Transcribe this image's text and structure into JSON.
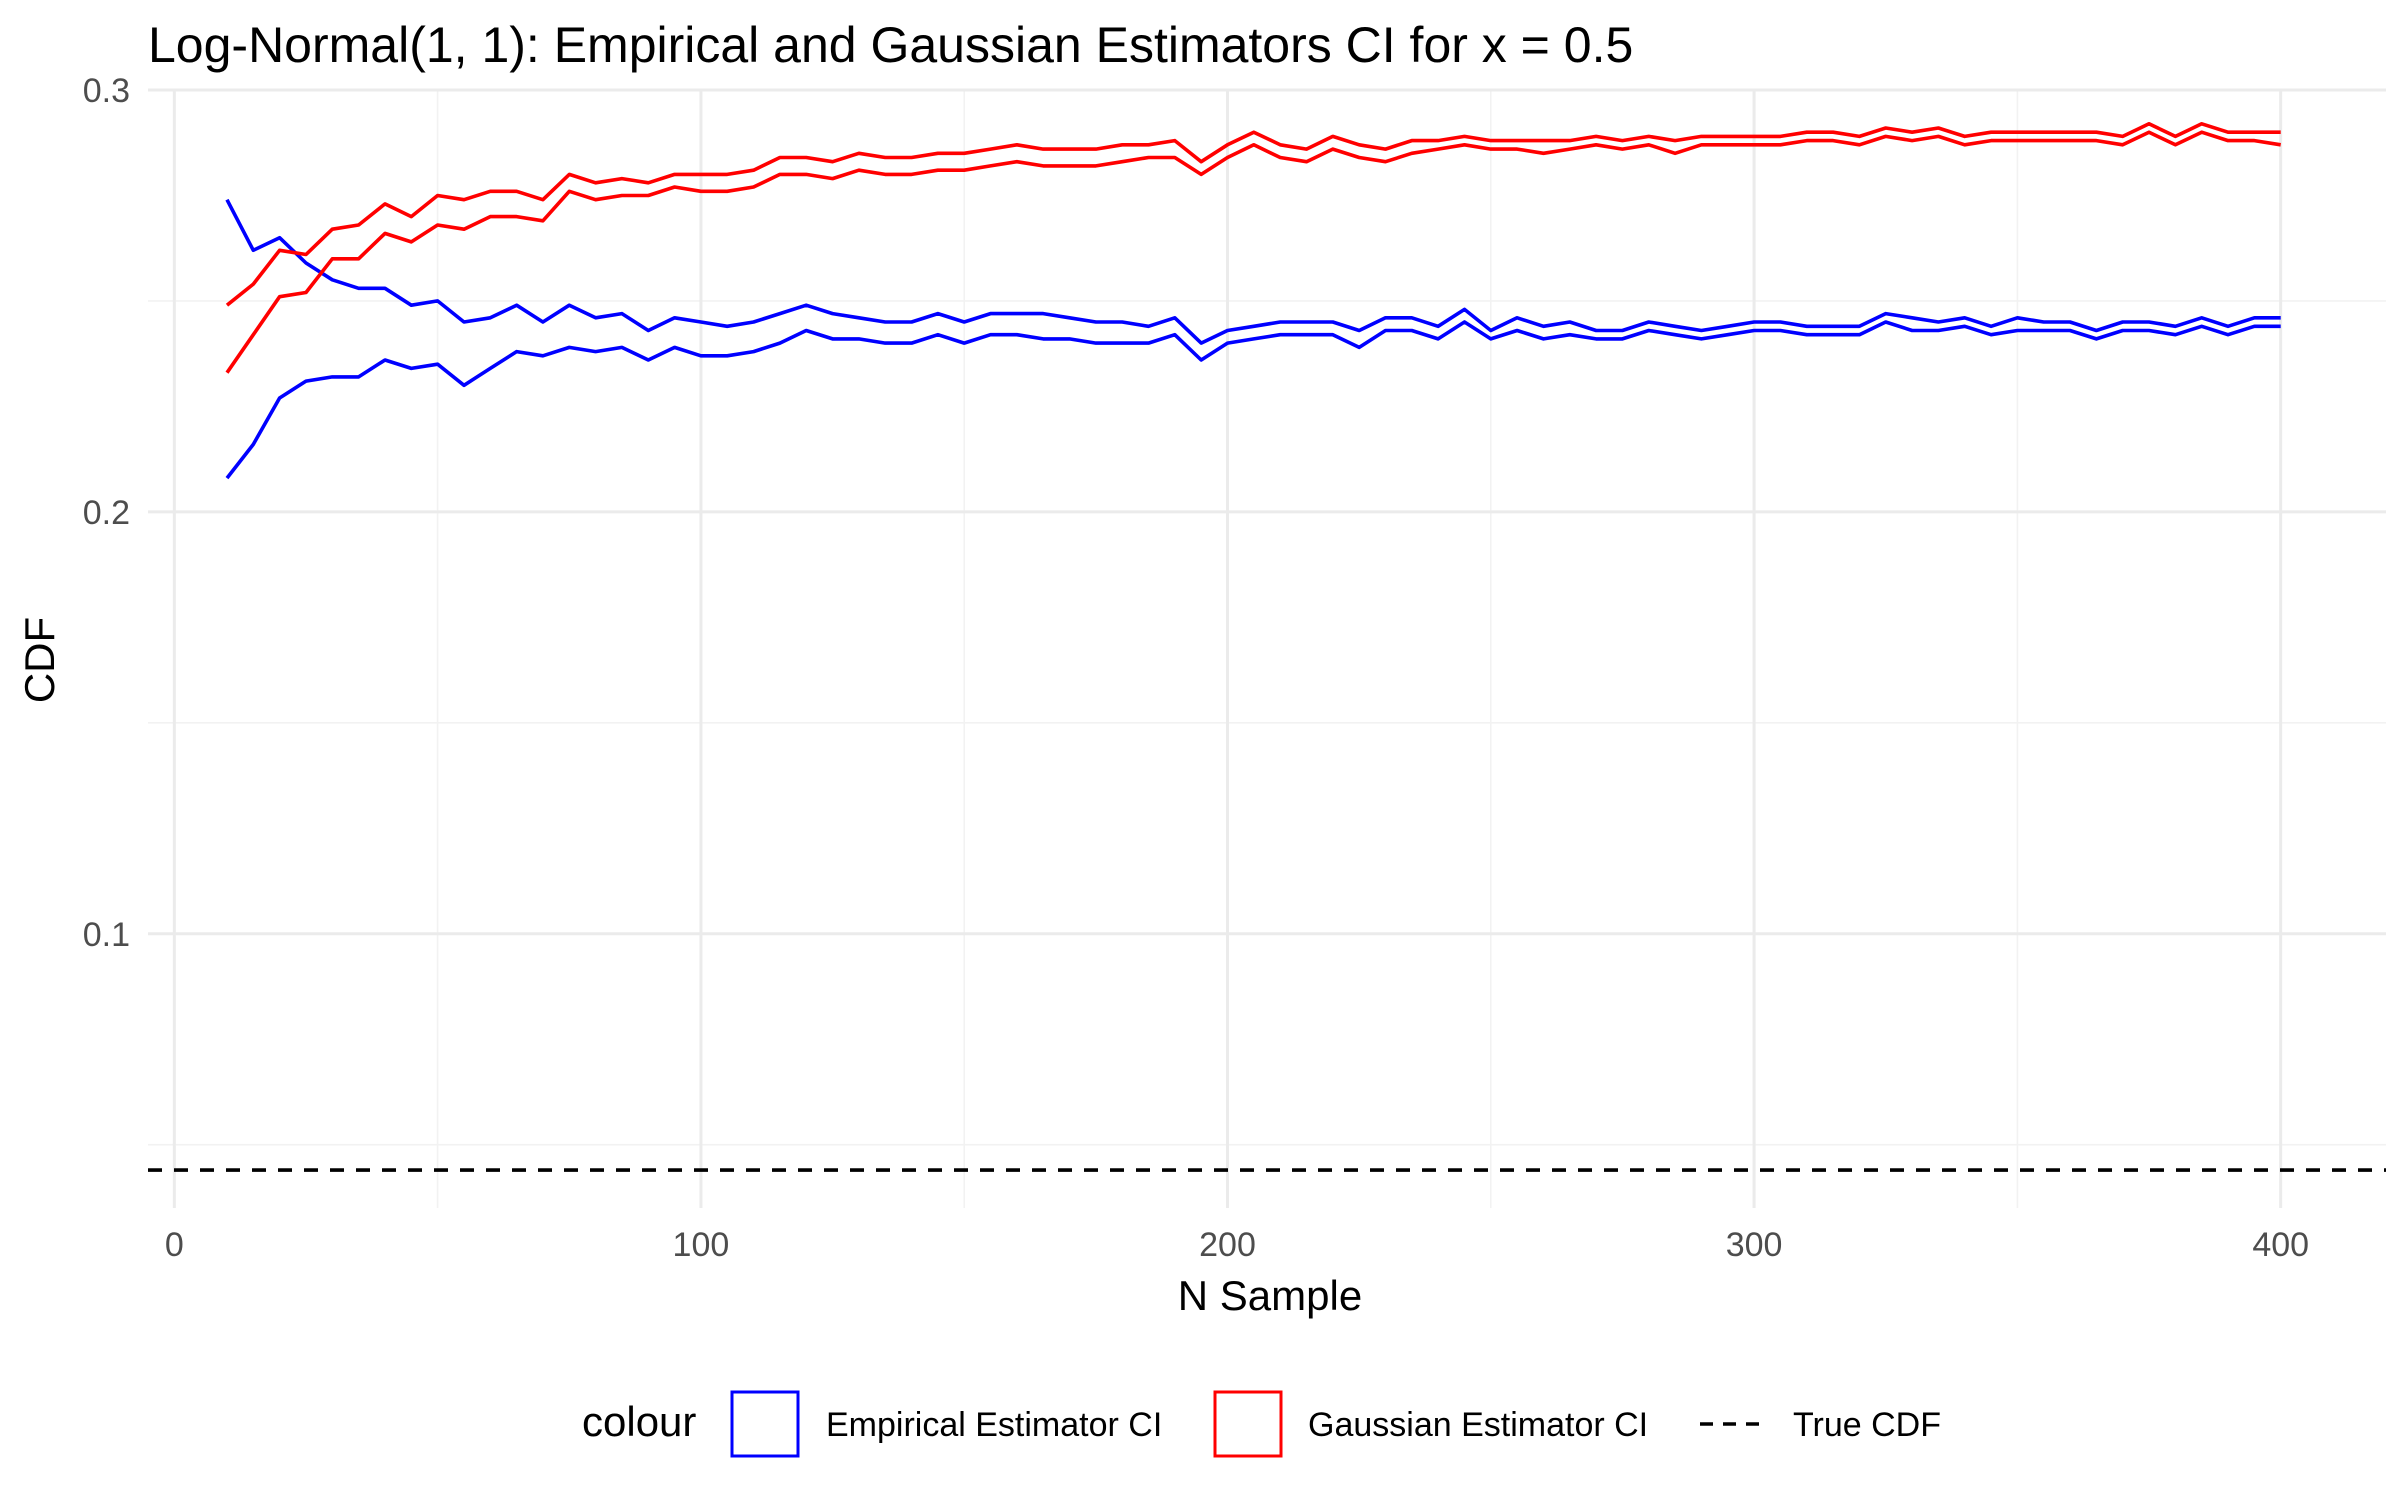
{
  "chart_data": {
    "type": "line",
    "title": "Log-Normal(1, 1): Empirical and Gaussian Estimators CI for x = 0.5",
    "xlabel": "N Sample",
    "ylabel": "CDF",
    "xlim": [
      -5,
      420
    ],
    "ylim": [
      0.035,
      0.3
    ],
    "x_ticks": [
      0,
      100,
      200,
      300,
      400
    ],
    "x_tick_labels": [
      "0",
      "100",
      "200",
      "300",
      "400"
    ],
    "y_ticks": [
      0.1,
      0.2,
      0.3
    ],
    "y_tick_labels": [
      "0.1",
      "0.2",
      "0.3"
    ],
    "grid": true,
    "legend": {
      "title": "colour",
      "position": "bottom",
      "entries": [
        {
          "label": "Empirical Estimator CI",
          "color": "#0000ff",
          "style": "box"
        },
        {
          "label": "Gaussian Estimator CI",
          "color": "#ff0000",
          "style": "box"
        },
        {
          "label": "True CDF",
          "color": "#000000",
          "style": "dashed"
        }
      ]
    },
    "reference_line": {
      "name": "True CDF",
      "y": 0.044,
      "color": "#000000",
      "dash": true
    },
    "x": [
      10,
      15,
      20,
      25,
      30,
      35,
      40,
      45,
      50,
      55,
      60,
      65,
      70,
      75,
      80,
      85,
      90,
      95,
      100,
      105,
      110,
      115,
      120,
      125,
      130,
      135,
      140,
      145,
      150,
      155,
      160,
      165,
      170,
      175,
      180,
      185,
      190,
      195,
      200,
      205,
      210,
      215,
      220,
      225,
      230,
      235,
      240,
      245,
      250,
      255,
      260,
      265,
      270,
      275,
      280,
      285,
      290,
      295,
      300,
      305,
      310,
      315,
      320,
      325,
      330,
      335,
      340,
      345,
      350,
      355,
      360,
      365,
      370,
      375,
      380,
      385,
      390,
      395,
      400
    ],
    "series": [
      {
        "name": "Empirical Estimator CI",
        "color": "#0000ff",
        "values": [
          0.274,
          0.262,
          0.265,
          0.259,
          0.255,
          0.253,
          0.253,
          0.249,
          0.25,
          0.245,
          0.246,
          0.249,
          0.245,
          0.249,
          0.246,
          0.247,
          0.243,
          0.246,
          0.245,
          0.244,
          0.245,
          0.247,
          0.249,
          0.247,
          0.246,
          0.245,
          0.245,
          0.247,
          0.245,
          0.247,
          0.247,
          0.247,
          0.246,
          0.245,
          0.245,
          0.244,
          0.246,
          0.24,
          0.243,
          0.244,
          0.245,
          0.245,
          0.245,
          0.243,
          0.246,
          0.246,
          0.244,
          0.248,
          0.243,
          0.246,
          0.244,
          0.245,
          0.243,
          0.243,
          0.245,
          0.244,
          0.243,
          0.244,
          0.245,
          0.245,
          0.244,
          0.244,
          0.244,
          0.247,
          0.246,
          0.245,
          0.246,
          0.244,
          0.246,
          0.245,
          0.245,
          0.243,
          0.245,
          0.245,
          0.244,
          0.246,
          0.244,
          0.246,
          0.246
        ]
      },
      {
        "name": "Empirical Estimator CI",
        "color": "#0000ff",
        "values": [
          0.208,
          0.216,
          0.227,
          0.231,
          0.232,
          0.232,
          0.236,
          0.234,
          0.235,
          0.23,
          0.234,
          0.238,
          0.237,
          0.239,
          0.238,
          0.239,
          0.236,
          0.239,
          0.237,
          0.237,
          0.238,
          0.24,
          0.243,
          0.241,
          0.241,
          0.24,
          0.24,
          0.242,
          0.24,
          0.242,
          0.242,
          0.241,
          0.241,
          0.24,
          0.24,
          0.24,
          0.242,
          0.236,
          0.24,
          0.241,
          0.242,
          0.242,
          0.242,
          0.239,
          0.243,
          0.243,
          0.241,
          0.245,
          0.241,
          0.243,
          0.241,
          0.242,
          0.241,
          0.241,
          0.243,
          0.242,
          0.241,
          0.242,
          0.243,
          0.243,
          0.242,
          0.242,
          0.242,
          0.245,
          0.243,
          0.243,
          0.244,
          0.242,
          0.243,
          0.243,
          0.243,
          0.241,
          0.243,
          0.243,
          0.242,
          0.244,
          0.242,
          0.244,
          0.244
        ]
      },
      {
        "name": "Gaussian Estimator CI",
        "color": "#ff0000",
        "values": [
          0.249,
          0.254,
          0.262,
          0.261,
          0.267,
          0.268,
          0.273,
          0.27,
          0.275,
          0.274,
          0.276,
          0.276,
          0.274,
          0.28,
          0.278,
          0.279,
          0.278,
          0.28,
          0.28,
          0.28,
          0.281,
          0.284,
          0.284,
          0.283,
          0.285,
          0.284,
          0.284,
          0.285,
          0.285,
          0.286,
          0.287,
          0.286,
          0.286,
          0.286,
          0.287,
          0.287,
          0.288,
          0.283,
          0.287,
          0.29,
          0.287,
          0.286,
          0.289,
          0.287,
          0.286,
          0.288,
          0.288,
          0.289,
          0.288,
          0.288,
          0.288,
          0.288,
          0.289,
          0.288,
          0.289,
          0.288,
          0.289,
          0.289,
          0.289,
          0.289,
          0.29,
          0.29,
          0.289,
          0.291,
          0.29,
          0.291,
          0.289,
          0.29,
          0.29,
          0.29,
          0.29,
          0.29,
          0.289,
          0.292,
          0.289,
          0.292,
          0.29,
          0.29,
          0.29
        ]
      },
      {
        "name": "Gaussian Estimator CI",
        "color": "#ff0000",
        "values": [
          0.233,
          0.242,
          0.251,
          0.252,
          0.26,
          0.26,
          0.266,
          0.264,
          0.268,
          0.267,
          0.27,
          0.27,
          0.269,
          0.276,
          0.274,
          0.275,
          0.275,
          0.277,
          0.276,
          0.276,
          0.277,
          0.28,
          0.28,
          0.279,
          0.281,
          0.28,
          0.28,
          0.281,
          0.281,
          0.282,
          0.283,
          0.282,
          0.282,
          0.282,
          0.283,
          0.284,
          0.284,
          0.28,
          0.284,
          0.287,
          0.284,
          0.283,
          0.286,
          0.284,
          0.283,
          0.285,
          0.286,
          0.287,
          0.286,
          0.286,
          0.285,
          0.286,
          0.287,
          0.286,
          0.287,
          0.285,
          0.287,
          0.287,
          0.287,
          0.287,
          0.288,
          0.288,
          0.287,
          0.289,
          0.288,
          0.289,
          0.287,
          0.288,
          0.288,
          0.288,
          0.288,
          0.288,
          0.287,
          0.29,
          0.287,
          0.29,
          0.288,
          0.288,
          0.287
        ]
      }
    ]
  }
}
